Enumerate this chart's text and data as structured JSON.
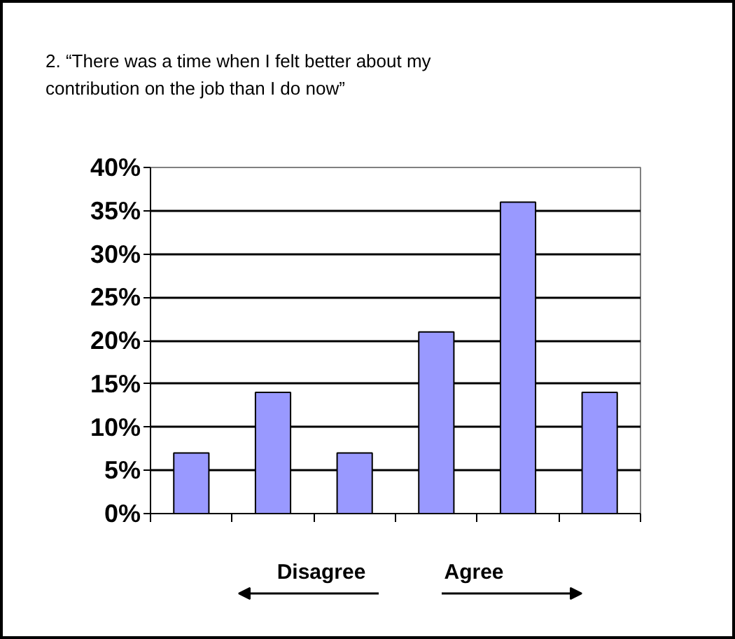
{
  "chart_data": {
    "type": "bar",
    "title": "2. “There was a time when I felt better about my contribution on the job than I do now”",
    "categories": [
      null,
      null,
      null,
      null,
      null,
      null
    ],
    "values": [
      7,
      14,
      7,
      21,
      36,
      14
    ],
    "color": "#9999ff",
    "ylim": [
      0,
      40
    ],
    "yticks": [
      {
        "value": 0,
        "label": "0%"
      },
      {
        "value": 5,
        "label": "5%"
      },
      {
        "value": 10,
        "label": "10%"
      },
      {
        "value": 15,
        "label": "15%"
      },
      {
        "value": 20,
        "label": "20%"
      },
      {
        "value": 25,
        "label": "25%"
      },
      {
        "value": 30,
        "label": "30%"
      },
      {
        "value": 35,
        "label": "35%"
      },
      {
        "value": 40,
        "label": "40%"
      }
    ],
    "grid": "y",
    "tick_labels": "y",
    "annotations": [
      "Disagree",
      "Agree"
    ]
  }
}
